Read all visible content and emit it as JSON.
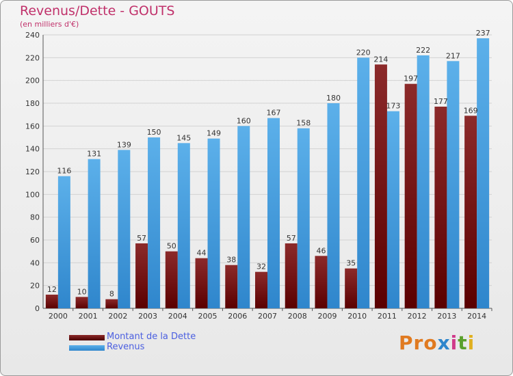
{
  "header": {
    "title": "Revenus/Dette - GOUTS",
    "subtitle": "(en milliers d'€)"
  },
  "legend": {
    "items": [
      {
        "label": "Montant de la Dette",
        "color": "#7a1010"
      },
      {
        "label": "Revenus",
        "color": "#4aa0e0"
      }
    ]
  },
  "logo": {
    "text": "Proxiti"
  },
  "chart_data": {
    "type": "bar",
    "categories": [
      "2000",
      "2001",
      "2002",
      "2003",
      "2004",
      "2005",
      "2006",
      "2007",
      "2008",
      "2009",
      "2010",
      "2011",
      "2012",
      "2013",
      "2014"
    ],
    "series": [
      {
        "name": "Montant de la Dette",
        "values": [
          12,
          10,
          8,
          57,
          50,
          44,
          38,
          32,
          57,
          46,
          35,
          214,
          197,
          177,
          169
        ],
        "color": "#7a1010"
      },
      {
        "name": "Revenus",
        "values": [
          116,
          131,
          139,
          150,
          145,
          149,
          160,
          167,
          158,
          180,
          220,
          173,
          222,
          217,
          237
        ],
        "color": "#4aa0e0"
      }
    ],
    "ylim": [
      0,
      240
    ],
    "yticks": [
      0,
      20,
      40,
      60,
      80,
      100,
      120,
      140,
      160,
      180,
      200,
      220,
      240
    ],
    "grid": true,
    "legend_position": "bottom-left"
  }
}
